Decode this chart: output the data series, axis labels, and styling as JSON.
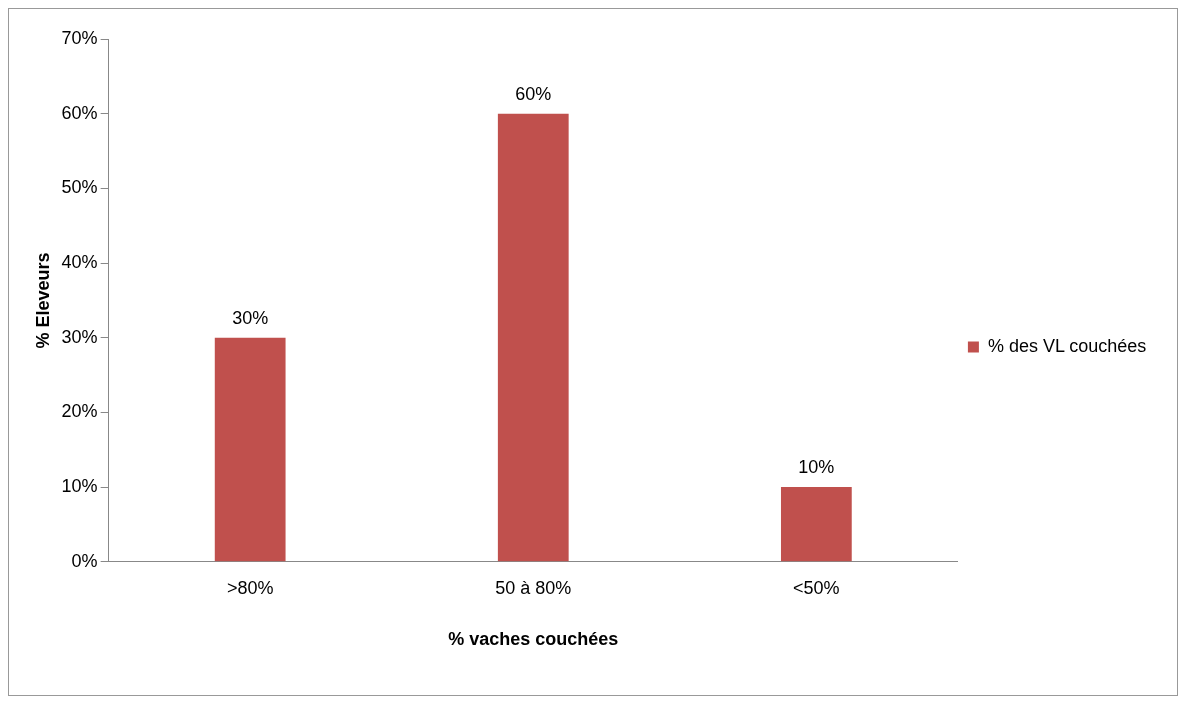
{
  "chart_data": {
    "type": "bar",
    "xlabel": "% vaches couchées",
    "ylabel": "% Eleveurs",
    "categories": [
      ">80%",
      "50 à 80%",
      "<50%"
    ],
    "series": [
      {
        "name": "% des VL couchées",
        "color": "#c0504d",
        "values": [
          30,
          60,
          10
        ],
        "value_labels": [
          "30%",
          "60%",
          "10%"
        ]
      }
    ],
    "ylim": [
      0,
      70
    ],
    "yticks": [
      {
        "value": 0,
        "label": "0%"
      },
      {
        "value": 10,
        "label": "10%"
      },
      {
        "value": 20,
        "label": "20%"
      },
      {
        "value": 30,
        "label": "30%"
      },
      {
        "value": 40,
        "label": "40%"
      },
      {
        "value": 50,
        "label": "50%"
      },
      {
        "value": 60,
        "label": "60%"
      },
      {
        "value": 70,
        "label": "70%"
      }
    ],
    "legend": "right",
    "grid": false
  }
}
